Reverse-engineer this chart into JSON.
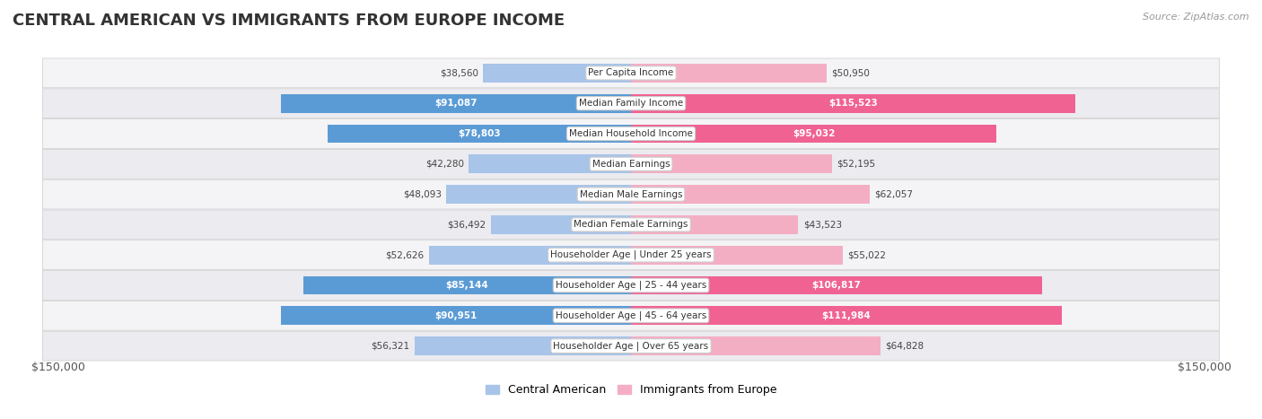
{
  "title": "CENTRAL AMERICAN VS IMMIGRANTS FROM EUROPE INCOME",
  "source": "Source: ZipAtlas.com",
  "categories": [
    "Per Capita Income",
    "Median Family Income",
    "Median Household Income",
    "Median Earnings",
    "Median Male Earnings",
    "Median Female Earnings",
    "Householder Age | Under 25 years",
    "Householder Age | 25 - 44 years",
    "Householder Age | 45 - 64 years",
    "Householder Age | Over 65 years"
  ],
  "central_american": [
    38560,
    91087,
    78803,
    42280,
    48093,
    36492,
    52626,
    85144,
    90951,
    56321
  ],
  "immigrants_europe": [
    50950,
    115523,
    95032,
    52195,
    62057,
    43523,
    55022,
    106817,
    111984,
    64828
  ],
  "max_val": 150000,
  "blue_light": "#a8c4e8",
  "blue_dark": "#5b9bd5",
  "pink_light": "#f4aec4",
  "pink_dark": "#f06292",
  "inside_text_threshold": 65000,
  "row_bg_color": "#f0f0f0",
  "row_border_color": "#d0d0d0",
  "label_bg": "#ffffff",
  "label_border": "#cccccc",
  "legend_blue": "Central American",
  "legend_pink": "Immigrants from Europe",
  "x_label_left": "$150,000",
  "x_label_right": "$150,000",
  "title_fontsize": 13,
  "label_fontsize": 7.5,
  "value_fontsize": 7.5,
  "axis_fontsize": 9
}
